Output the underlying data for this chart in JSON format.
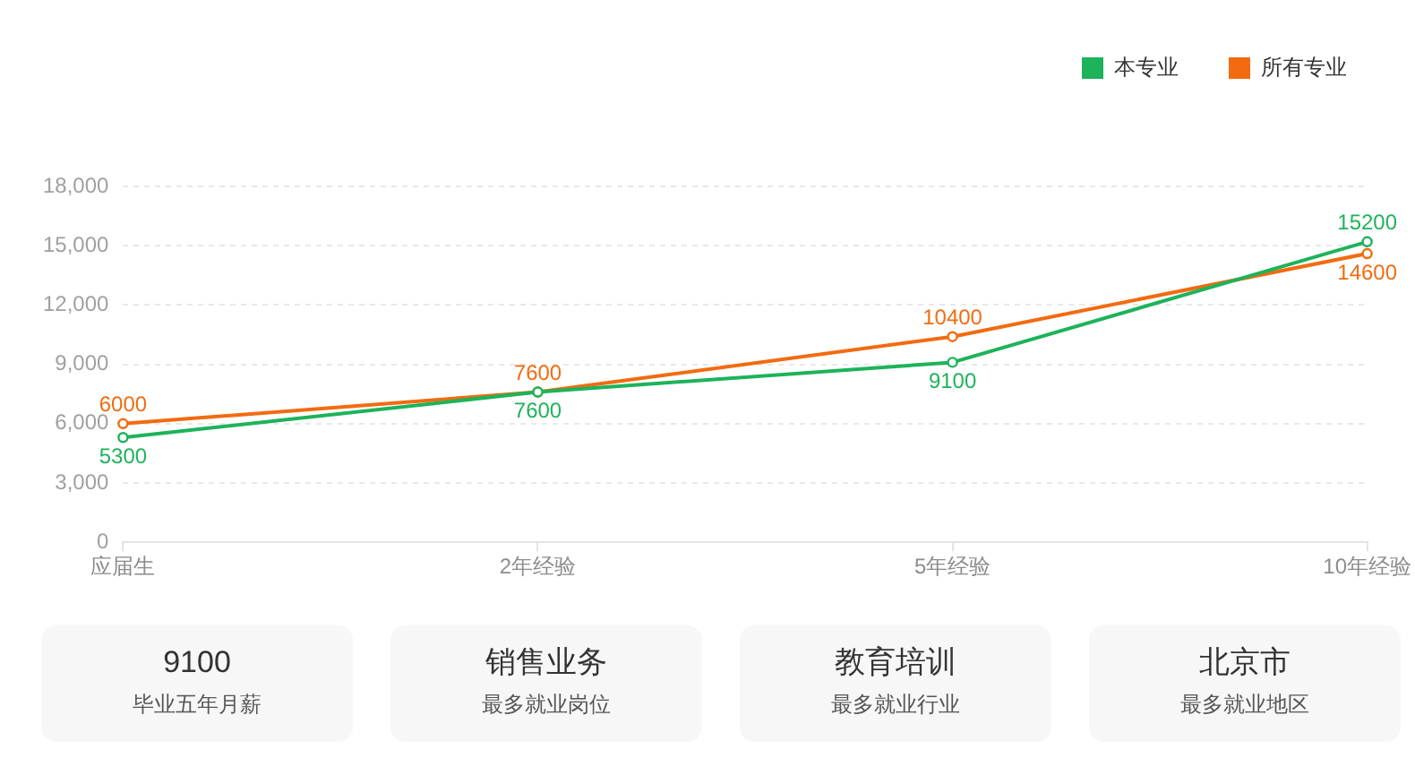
{
  "chart_data": [
    {
      "type": "line",
      "categories": [
        "应届生",
        "2年经验",
        "5年经验",
        "10年经验"
      ],
      "series": [
        {
          "name": "本专业",
          "color": "#1db35a",
          "values": [
            5300,
            7600,
            9100,
            15200
          ]
        },
        {
          "name": "所有专业",
          "color": "#f26b10",
          "values": [
            6000,
            7600,
            10400,
            14600
          ]
        }
      ],
      "ylim": [
        0,
        18000
      ],
      "yticks": [
        0,
        {
          "value": 3000,
          "label": "3,000"
        },
        {
          "value": 6000,
          "label": "6,000"
        },
        {
          "value": 9000,
          "label": "9,000"
        },
        {
          "value": 12000,
          "label": "12,000"
        },
        {
          "value": 15000,
          "label": "15,000"
        },
        {
          "value": 18000,
          "label": "18,000"
        }
      ],
      "grid": "y",
      "legend": "top right",
      "marker": "circle",
      "line_style": "solid",
      "data_labels": true
    },
    {
      "type": "other",
      "title": "9100",
      "subtitle": "毕业五年月薪"
    },
    {
      "type": "other",
      "title": "销售业务",
      "subtitle": "最多就业岗位"
    },
    {
      "type": "other",
      "title": "教育培训",
      "subtitle": "最多就业行业"
    },
    {
      "type": "other",
      "title": "北京市",
      "subtitle": "最多就业地区"
    }
  ]
}
